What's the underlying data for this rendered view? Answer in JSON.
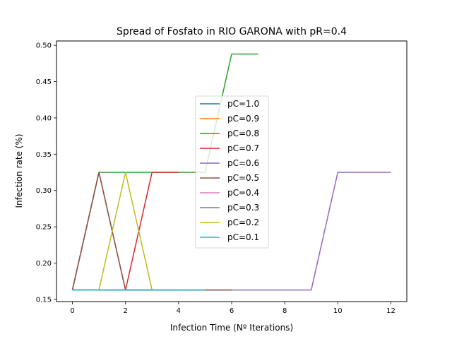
{
  "chart_data": {
    "type": "line",
    "title": "Spread of Fosfato in RIO GARONA with pR=0.4",
    "xlabel": "Infection Time (Nº Iterations)",
    "ylabel": "Infection rate (%)",
    "xlim": [
      -0.6,
      12.6
    ],
    "ylim": [
      0.147,
      0.506
    ],
    "xticks": [
      0,
      2,
      4,
      6,
      8,
      10,
      12
    ],
    "yticks": [
      0.15,
      0.2,
      0.25,
      0.3,
      0.35,
      0.4,
      0.45,
      0.5
    ],
    "ytick_labels": [
      "0.15",
      "0.20",
      "0.25",
      "0.30",
      "0.35",
      "0.40",
      "0.45",
      "0.50"
    ],
    "grid": false,
    "legend_position": "center",
    "series": [
      {
        "name": "pC=1.0",
        "color": "#1f77b4",
        "x": [
          0,
          1,
          2,
          3,
          4
        ],
        "y": [
          0.163,
          0.163,
          0.163,
          0.163,
          0.163
        ]
      },
      {
        "name": "pC=0.9",
        "color": "#ff7f0e",
        "x": [
          0,
          1,
          2,
          3
        ],
        "y": [
          0.163,
          0.163,
          0.163,
          0.163
        ]
      },
      {
        "name": "pC=0.8",
        "color": "#2ca02c",
        "x": [
          0,
          1,
          2,
          3,
          4,
          5,
          6,
          7
        ],
        "y": [
          0.163,
          0.325,
          0.325,
          0.325,
          0.325,
          0.325,
          0.488,
          0.488
        ]
      },
      {
        "name": "pC=0.7",
        "color": "#d62728",
        "x": [
          0,
          1,
          2,
          3,
          4
        ],
        "y": [
          0.163,
          0.325,
          0.163,
          0.325,
          0.325
        ]
      },
      {
        "name": "pC=0.6",
        "color": "#9467bd",
        "x": [
          0,
          1,
          2,
          3,
          4,
          5,
          6,
          7,
          8,
          9,
          10,
          11,
          12
        ],
        "y": [
          0.163,
          0.163,
          0.163,
          0.163,
          0.163,
          0.163,
          0.163,
          0.163,
          0.163,
          0.163,
          0.325,
          0.325,
          0.325
        ]
      },
      {
        "name": "pC=0.5",
        "color": "#8c564b",
        "x": [
          0,
          1,
          2,
          3,
          4,
          5,
          6
        ],
        "y": [
          0.163,
          0.325,
          0.163,
          0.163,
          0.163,
          0.163,
          0.163
        ]
      },
      {
        "name": "pC=0.4",
        "color": "#e377c2",
        "x": [
          0,
          1,
          2,
          3
        ],
        "y": [
          0.163,
          0.163,
          0.163,
          0.163
        ]
      },
      {
        "name": "pC=0.3",
        "color": "#7f7f7f",
        "x": [
          0,
          1,
          2,
          3
        ],
        "y": [
          0.163,
          0.163,
          0.163,
          0.163
        ]
      },
      {
        "name": "pC=0.2",
        "color": "#bcbd22",
        "x": [
          0,
          1,
          2,
          3
        ],
        "y": [
          0.163,
          0.163,
          0.325,
          0.163
        ]
      },
      {
        "name": "pC=0.1",
        "color": "#17becf",
        "x": [
          0,
          1,
          2,
          3,
          4,
          5
        ],
        "y": [
          0.163,
          0.163,
          0.163,
          0.163,
          0.163,
          0.163
        ]
      }
    ]
  }
}
